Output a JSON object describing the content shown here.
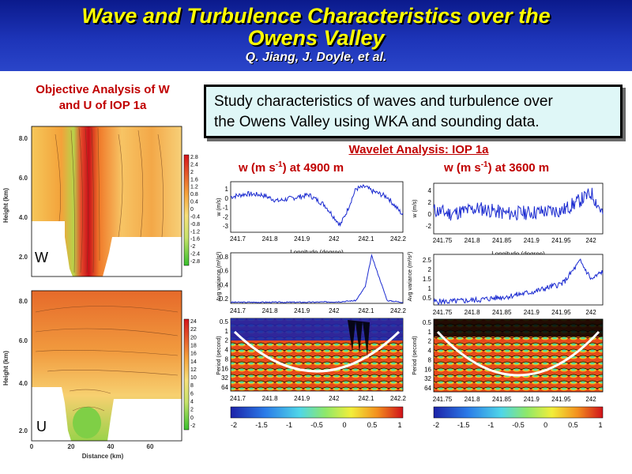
{
  "header": {
    "title_line1": "Wave and Turbulence Characteristics over the",
    "title_line2": "Owens Valley",
    "authors": "Q. Jiang, J. Doyle, et al."
  },
  "objective_analysis": {
    "title_line1": "Objective Analysis of W",
    "title_line2": "and U of IOP 1a",
    "ylabel": "Height (km)",
    "xlabel": "Distance (km)",
    "y_ticks": [
      "2.0",
      "4.0",
      "6.0",
      "8.0"
    ],
    "x_ticks": [
      "0",
      "20",
      "40",
      "60"
    ],
    "panel_w_label": "W",
    "panel_u_label": "U",
    "w_colorbar": [
      "2.8",
      "2.4",
      "2",
      "1.6",
      "1.2",
      "0.8",
      "0.4",
      "0",
      "-0.4",
      "-0.8",
      "-1.2",
      "-1.6",
      "-2",
      "-2.4",
      "-2.8"
    ],
    "u_colorbar": [
      "24",
      "22",
      "20",
      "18",
      "16",
      "14",
      "12",
      "10",
      "8",
      "6",
      "4",
      "2",
      "0",
      "-2"
    ]
  },
  "callout": {
    "line1": "Study characteristics of waves and turbulence over",
    "line2": "the Owens Valley using WKA and sounding data."
  },
  "wavelet": {
    "title": "Wavelet Analysis: IOP 1a",
    "left_label_pre": "w (m s",
    "left_label_sup": "-1",
    "left_label_post": ") at 4900 m",
    "right_label_pre": "w (m s",
    "right_label_sup": "-1",
    "right_label_post": ") at 3600 m",
    "ts_ylabel": "w (m/s)",
    "ts_xlabel": "Longitude (degree)",
    "var_ylabel": "Avg variance (m²/s²)",
    "period_ylabel": "Period (second)",
    "period_ticks": [
      "0.5",
      "1",
      "2",
      "4",
      "8",
      "16",
      "32",
      "64"
    ],
    "left_x_ticks": [
      "241.7",
      "241.8",
      "241.9",
      "242",
      "242.1",
      "242.2"
    ],
    "right_x_ticks": [
      "241.75",
      "241.8",
      "241.85",
      "241.9",
      "241.95",
      "242"
    ],
    "left_ts_y_ticks": [
      "1",
      "0",
      "-1",
      "-2",
      "-3"
    ],
    "right_ts_y_ticks": [
      "4",
      "2",
      "0",
      "-2"
    ],
    "left_var_y_ticks": [
      "0.8",
      "0.6",
      "0.4",
      "0.2"
    ],
    "right_var_y_ticks": [
      "2.5",
      "2",
      "1.5",
      "1",
      "0.5"
    ],
    "colorbar_ticks": [
      "-2",
      "-1.5",
      "-1",
      "-0.5",
      "0",
      "0.5",
      "1"
    ]
  },
  "chart_data": [
    {
      "type": "line",
      "title": "w (m s-1) at 4900 m",
      "xlabel": "Longitude (degree)",
      "ylabel": "w (m/s)",
      "xlim": [
        241.65,
        242.2
      ],
      "ylim": [
        -3.5,
        1.5
      ],
      "x": [
        241.65,
        241.7,
        241.75,
        241.8,
        241.85,
        241.9,
        241.95,
        242.0,
        242.02,
        242.05,
        242.08,
        242.1,
        242.15,
        242.2
      ],
      "values": [
        0.0,
        0.3,
        0.2,
        -0.4,
        -0.1,
        0.2,
        -0.8,
        -2.8,
        -1.5,
        0.8,
        1.0,
        0.6,
        0.0,
        -1.8
      ]
    },
    {
      "type": "line",
      "title": "w (m s-1) at 3600 m",
      "xlabel": "Longitude (degree)",
      "ylabel": "w (m/s)",
      "xlim": [
        241.72,
        242.02
      ],
      "ylim": [
        -3,
        4.5
      ],
      "x": [
        241.72,
        241.75,
        241.8,
        241.85,
        241.9,
        241.95,
        241.98,
        242.0,
        242.02
      ],
      "values": [
        0.5,
        0.0,
        0.8,
        0.0,
        0.2,
        0.5,
        2.0,
        3.0,
        0.0
      ]
    },
    {
      "type": "line",
      "title": "Avg variance 4900 m",
      "ylabel": "Avg variance (m²/s²)",
      "ylim": [
        0,
        0.9
      ],
      "x": [
        241.65,
        241.7,
        241.8,
        241.9,
        242.0,
        242.05,
        242.08,
        242.1,
        242.15,
        242.2
      ],
      "values": [
        0.02,
        0.02,
        0.02,
        0.02,
        0.03,
        0.05,
        0.3,
        0.85,
        0.05,
        0.02
      ]
    },
    {
      "type": "line",
      "title": "Avg variance 3600 m",
      "ylabel": "Avg variance (m²/s²)",
      "ylim": [
        0,
        3.0
      ],
      "x": [
        241.72,
        241.75,
        241.8,
        241.85,
        241.9,
        241.95,
        241.98,
        242.0,
        242.02
      ],
      "values": [
        0.2,
        0.2,
        0.3,
        0.5,
        0.8,
        1.3,
        2.6,
        1.5,
        2.0
      ]
    }
  ]
}
